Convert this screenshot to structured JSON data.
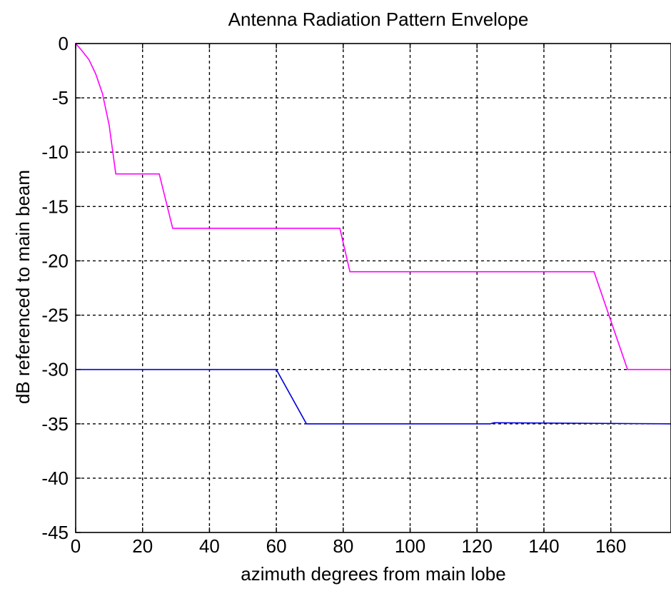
{
  "chart_data": {
    "type": "line",
    "title": "Antenna Radiation Pattern Envelope",
    "xlabel": "azimuth degrees from main lobe",
    "ylabel": "dB referenced to main beam",
    "xlim": [
      0,
      178
    ],
    "ylim": [
      -45,
      0
    ],
    "xticks": [
      0,
      20,
      40,
      60,
      80,
      100,
      120,
      140,
      160
    ],
    "yticks": [
      0,
      -5,
      -10,
      -15,
      -20,
      -25,
      -30,
      -35,
      -40,
      -45
    ],
    "grid": true,
    "series": [
      {
        "color": "#ff00ff",
        "x": [
          0,
          2,
          4,
          6,
          8,
          10,
          12,
          25,
          29,
          79,
          82,
          155,
          165,
          178
        ],
        "y": [
          0,
          -0.7,
          -1.5,
          -2.8,
          -4.6,
          -7.5,
          -12,
          -12,
          -17,
          -17,
          -21,
          -21,
          -30,
          -30
        ]
      },
      {
        "color": "#0000dd",
        "x": [
          0,
          60,
          69,
          124,
          125,
          178
        ],
        "y": [
          -30,
          -30,
          -35,
          -35,
          -34.9,
          -35
        ]
      }
    ]
  }
}
